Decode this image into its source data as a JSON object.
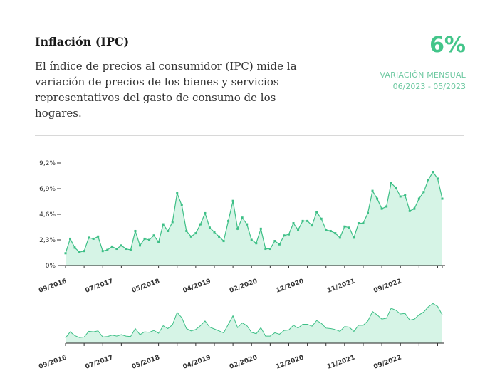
{
  "header": {
    "title": "Inflación (IPC)",
    "description": "El índice de precios al consumidor (IPC) mide la variación de precios de los bienes y servicios representativos del gasto de consumo de los hogares."
  },
  "highlight": {
    "value": "6%",
    "label": "VARIACIÓN MENSUAL",
    "period": "06/2023 - 05/2023",
    "color": "#43c58a"
  },
  "chart_data": {
    "type": "area",
    "title": "",
    "xlabel": "",
    "ylabel": "",
    "ylim": [
      0,
      9.2
    ],
    "yticks": [
      "0%",
      "2,3%",
      "4,6%",
      "6,9%",
      "9,2%"
    ],
    "ytick_values": [
      0,
      2.3,
      4.6,
      6.9,
      9.2
    ],
    "xtick_labels": [
      "09/2016",
      "07/2017",
      "05/2018",
      "04/2019",
      "02/2020",
      "12/2020",
      "11/2021",
      "09/2022"
    ],
    "xtick_months": [
      "2016-09",
      "2017-07",
      "2018-05",
      "2019-04",
      "2020-02",
      "2020-12",
      "2021-11",
      "2022-09"
    ],
    "grid": false,
    "line_color": "#3dbf86",
    "fill_color": "#d6f4e6",
    "series": [
      {
        "values": [
          1.1,
          2.4,
          1.6,
          1.2,
          1.3,
          2.5,
          2.4,
          2.6,
          1.3,
          1.4,
          1.7,
          1.5,
          1.8,
          1.5,
          1.4,
          3.1,
          1.8,
          2.4,
          2.3,
          2.7,
          2.1,
          3.7,
          3.1,
          3.9,
          6.5,
          5.4,
          3.1,
          2.6,
          2.9,
          3.7,
          4.7,
          3.4,
          3.0,
          2.6,
          2.2,
          4.0,
          5.8,
          3.3,
          4.3,
          3.7,
          2.3,
          2.0,
          3.3,
          1.5,
          1.5,
          2.2,
          1.9,
          2.7,
          2.8,
          3.8,
          3.2,
          4.0,
          4.0,
          3.6,
          4.8,
          4.2,
          3.2,
          3.1,
          2.9,
          2.5,
          3.5,
          3.4,
          2.5,
          3.8,
          3.8,
          4.7,
          6.7,
          6.0,
          5.1,
          5.3,
          7.4,
          7.0,
          6.2,
          6.3,
          4.9,
          5.1,
          6.0,
          6.6,
          7.7,
          8.4,
          7.8,
          6.0
        ]
      }
    ],
    "start_month": "2016-09"
  }
}
